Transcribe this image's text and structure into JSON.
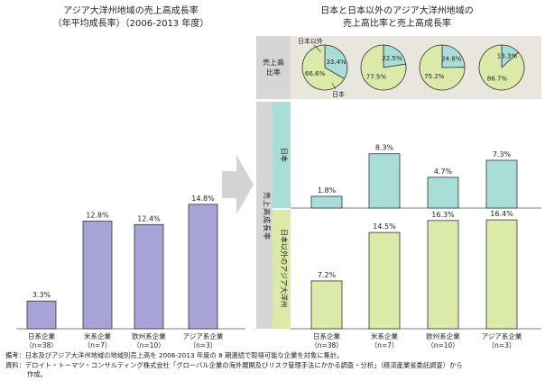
{
  "left_panel": {
    "title_line1": "アジア大洋州地域の売上高成長率",
    "title_line2": "（年平均成長率）（2006-2013 年度）"
  },
  "right_panel": {
    "title_line1": "日本と日本以外のアジア大洋州地域の",
    "title_line2": "売上高比率と売上高成長率",
    "row_label_ratio": "売上高比率",
    "row_label_growth": "売上高成長率",
    "row_label_japan": "日本",
    "row_label_overseas": "日本以外のアジア大洋州",
    "pie_label_outside": "日本以外",
    "pie_label_japan": "日本"
  },
  "notes": {
    "line1": "備考：日本及びアジア大洋州地域の地域別売上高を 2006-2013 年度の 8 期連続で取得可能な企業を対象に集計。",
    "line2": "資料：デロイト・トーマツ・コンサルティング株式会社「グローバル企業の海外展開及びリスク管理手法にかかる調査・分析」（経済産業省委託調査）から",
    "line3": "作成。"
  },
  "colors": {
    "purple": "#a7a3d6",
    "teal": "#a9ddd8",
    "green": "#dbeaa8",
    "gray_band": "#d6d6d6",
    "teal_band": "#a9ddd8",
    "green_band": "#dbeaa8",
    "pie_top_band": "#e8e6dd"
  },
  "chart_data": [
    {
      "type": "bar",
      "categories": [
        "日系企業\n（n=38）",
        "米系企業\n（n=7）",
        "欧州系企業\n（n=10）",
        "アジア系企業\n（n=3）"
      ],
      "values": [
        3.3,
        12.8,
        12.4,
        14.8
      ],
      "value_labels": [
        "3.3%",
        "12.8%",
        "12.4%",
        "14.8%"
      ],
      "ylim": [
        0,
        16.5
      ],
      "grid": false
    },
    {
      "type": "pie",
      "categories": [
        "日系企業\n（n=38）",
        "米系企業\n（n=7）",
        "欧州系企業\n（n=10）",
        "アジア系企業\n（n=3）"
      ],
      "japan_share": [
        66.6,
        77.5,
        75.2,
        86.7
      ],
      "outside_share": [
        33.4,
        22.5,
        24.8,
        13.3
      ],
      "japan_labels": [
        "66.6%",
        "77.5%",
        "75.2%",
        "86.7%"
      ],
      "outside_labels": [
        "33.4%",
        "22.5%",
        "24.8%",
        "13.3%"
      ]
    },
    {
      "type": "bar",
      "series_label": "日本",
      "categories": [
        "日系企業\n（n=38）",
        "米系企業\n（n=7）",
        "欧州系企業\n（n=10）",
        "アジア系企業\n（n=3）"
      ],
      "values": [
        1.8,
        8.3,
        4.7,
        7.3
      ],
      "value_labels": [
        "1.8%",
        "8.3%",
        "4.7%",
        "7.3%"
      ],
      "ylim": [
        0,
        9.5
      ]
    },
    {
      "type": "bar",
      "series_label": "日本以外のアジア大洋州",
      "categories": [
        "日系企業\n（n=38）",
        "米系企業\n（n=7）",
        "欧州系企業\n（n=10）",
        "アジア系企業\n（n=3）"
      ],
      "values": [
        7.2,
        14.5,
        16.3,
        16.4
      ],
      "value_labels": [
        "7.2%",
        "14.5%",
        "16.3%",
        "16.4%"
      ],
      "ylim": [
        0,
        17.5
      ]
    }
  ]
}
